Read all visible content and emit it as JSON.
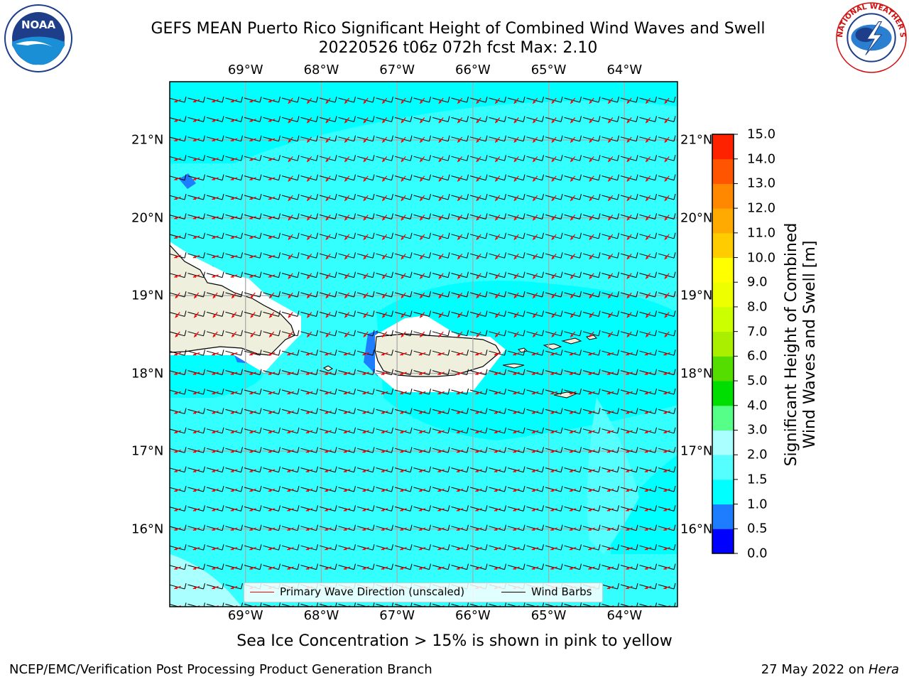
{
  "title": {
    "line1": "GEFS MEAN Puerto Rico Significant Height of Combined Wind Waves and Swell",
    "line2": "20220526 t06z 072h fcst   Max: 2.10"
  },
  "map": {
    "lon_ticks": [
      "69°W",
      "68°W",
      "67°W",
      "66°W",
      "65°W",
      "64°W"
    ],
    "lat_ticks": [
      "21°N",
      "20°N",
      "19°N",
      "18°N",
      "17°N",
      "16°N"
    ],
    "lon_range": [
      -70.0,
      -63.3
    ],
    "lat_range": [
      15.0,
      21.75
    ]
  },
  "legend": {
    "wave_label": "Primary Wave Direction (unscaled)",
    "wave_color": "#ff0000",
    "barb_label": "Wind Barbs",
    "barb_color": "#000000"
  },
  "colorbar": {
    "label_line1": "Significant Height of Combined",
    "label_line2": "Wind Waves and Swell [m]",
    "ticks": [
      "0.0",
      "0.5",
      "1.0",
      "1.5",
      "2.0",
      "3.0",
      "4.0",
      "5.0",
      "6.0",
      "7.0",
      "8.0",
      "9.0",
      "10.0",
      "11.0",
      "12.0",
      "13.0",
      "14.0",
      "15.0"
    ],
    "colors": [
      "#0000ff",
      "#1e7cff",
      "#00ffff",
      "#55ffff",
      "#aaffff",
      "#55ff88",
      "#00dd00",
      "#55dd00",
      "#aaee00",
      "#ccff00",
      "#eeff00",
      "#ffff00",
      "#ffcc00",
      "#ffaa00",
      "#ff8800",
      "#ff5500",
      "#ff2200",
      "#ff0000"
    ]
  },
  "caption": "Sea Ice Concentration > 15% is shown in pink to yellow",
  "footer": {
    "left": "NCEP/EMC/Verification Post Processing Product Generation Branch",
    "right_prefix": "27 May 2022 on ",
    "right_host": "Hera"
  },
  "logos": {
    "noaa_text": "NOAA",
    "nws_text": "NATIONAL WEATHER SERVICE"
  }
}
